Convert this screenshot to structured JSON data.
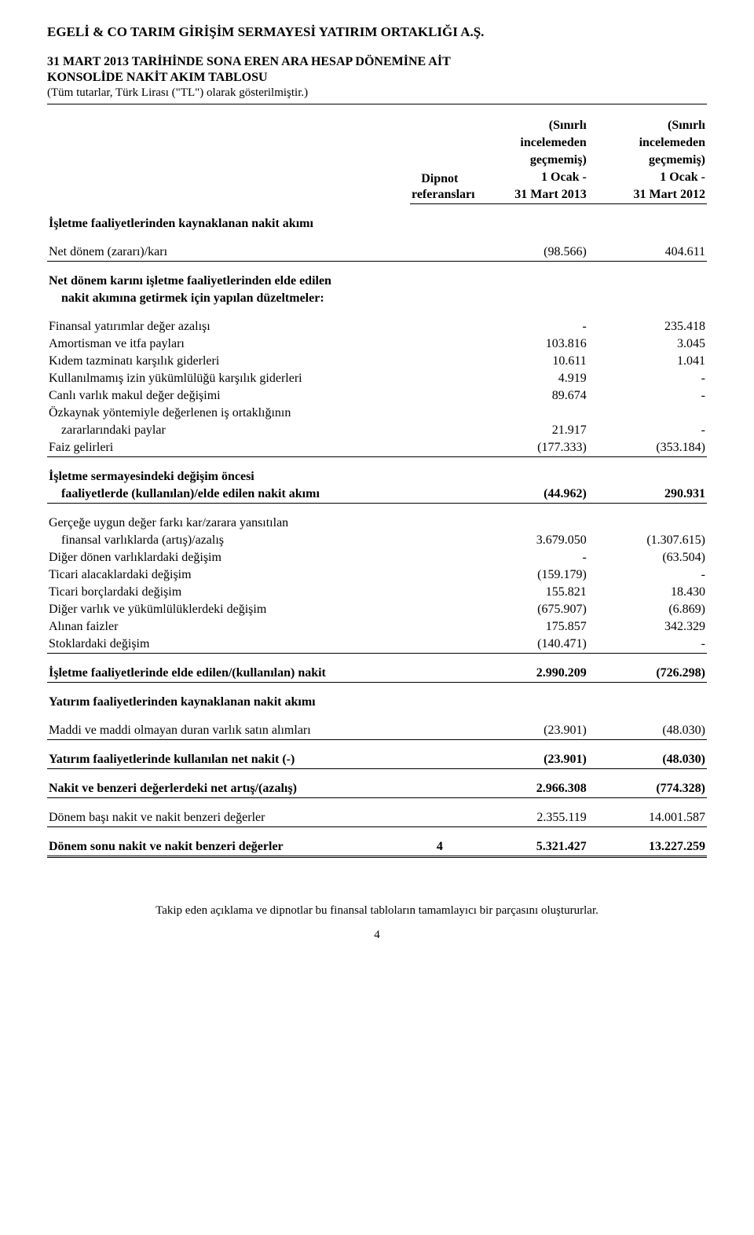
{
  "header": {
    "company": "EGELİ & CO TARIM GİRİŞİM SERMAYESİ YATIRIM ORTAKLIĞI A.Ş.",
    "title_line1": "31 MART 2013 TARİHİNDE SONA EREN ARA HESAP DÖNEMİNE AİT",
    "title_line2": "KONSOLİDE NAKİT AKIM TABLOSU",
    "note": "(Tüm tutarlar, Türk Lirası (\"TL\") olarak gösterilmiştir.)"
  },
  "columns": {
    "ref_label1": "Dipnot",
    "ref_label2": "referansları",
    "col1_sub1": "(Sınırlı",
    "col1_sub2": "incelemeden",
    "col1_sub3": "geçmemiş)",
    "col1_date1": "1 Ocak -",
    "col1_date2": "31 Mart 2013",
    "col2_sub1": "(Sınırlı",
    "col2_sub2": "incelemeden",
    "col2_sub3": "geçmemiş)",
    "col2_date1": "1 Ocak -",
    "col2_date2": "31 Mart 2012"
  },
  "rows": {
    "sec1": "İşletme faaliyetlerinden kaynaklanan nakit akımı",
    "r1": {
      "label": "Net dönem (zararı)/karı",
      "c1": "(98.566)",
      "c2": "404.611"
    },
    "sec2a": "Net dönem karını işletme faaliyetlerinden elde edilen",
    "sec2b": "nakit akımına getirmek için yapılan düzeltmeler:",
    "r2": {
      "label": "Finansal yatırımlar değer azalışı",
      "c1": "-",
      "c2": "235.418"
    },
    "r3": {
      "label": "Amortisman ve itfa payları",
      "c1": "103.816",
      "c2": "3.045"
    },
    "r4": {
      "label": "Kıdem tazminatı karşılık giderleri",
      "c1": "10.611",
      "c2": "1.041"
    },
    "r5": {
      "label": "Kullanılmamış izin yükümlülüğü karşılık giderleri",
      "c1": "4.919",
      "c2": "-"
    },
    "r6": {
      "label": "Canlı varlık makul değer değişimi",
      "c1": "89.674",
      "c2": "-"
    },
    "r7a": {
      "label": "Özkaynak yöntemiyle değerlenen iş ortaklığının"
    },
    "r7b": {
      "label": "zararlarındaki paylar",
      "c1": "21.917",
      "c2": "-"
    },
    "r8": {
      "label": "Faiz gelirleri",
      "c1": "(177.333)",
      "c2": "(353.184)"
    },
    "sec3a": "İşletme sermayesindeki değişim öncesi",
    "sec3b": {
      "label": "faaliyetlerde (kullanılan)/elde edilen nakit akımı",
      "c1": "(44.962)",
      "c2": "290.931"
    },
    "r9a": {
      "label": "Gerçeğe uygun değer farkı kar/zarara yansıtılan"
    },
    "r9b": {
      "label": "finansal varlıklarda (artış)/azalış",
      "c1": "3.679.050",
      "c2": "(1.307.615)"
    },
    "r10": {
      "label": "Diğer dönen varlıklardaki değişim",
      "c1": "-",
      "c2": "(63.504)"
    },
    "r11": {
      "label": "Ticari alacaklardaki değişim",
      "c1": "(159.179)",
      "c2": "-"
    },
    "r12": {
      "label": "Ticari borçlardaki değişim",
      "c1": "155.821",
      "c2": "18.430"
    },
    "r13": {
      "label": "Diğer varlık ve yükümlülüklerdeki değişim",
      "c1": "(675.907)",
      "c2": "(6.869)"
    },
    "r14": {
      "label": "Alınan faizler",
      "c1": "175.857",
      "c2": "342.329"
    },
    "r15": {
      "label": "Stoklardaki değişim",
      "c1": "(140.471)",
      "c2": "-"
    },
    "sec4": {
      "label": "İşletme faaliyetlerinde elde edilen/(kullanılan) nakit",
      "c1": "2.990.209",
      "c2": "(726.298)"
    },
    "sec5": "Yatırım faaliyetlerinden kaynaklanan nakit akımı",
    "r16": {
      "label": "Maddi ve maddi olmayan duran varlık satın alımları",
      "c1": "(23.901)",
      "c2": "(48.030)"
    },
    "sec6": {
      "label": "Yatırım faaliyetlerinde kullanılan net nakit (-)",
      "c1": "(23.901)",
      "c2": "(48.030)"
    },
    "sec7": {
      "label": "Nakit ve benzeri değerlerdeki net artış/(azalış)",
      "c1": "2.966.308",
      "c2": "(774.328)"
    },
    "r17": {
      "label": "Dönem başı nakit ve nakit benzeri değerler",
      "c1": "2.355.119",
      "c2": "14.001.587"
    },
    "sec8": {
      "label": "Dönem sonu nakit ve nakit benzeri değerler",
      "ref": "4",
      "c1": "5.321.427",
      "c2": "13.227.259"
    }
  },
  "footer": {
    "note": "Takip eden açıklama ve dipnotlar bu finansal tabloların tamamlayıcı bir parçasını oluştururlar.",
    "page": "4"
  }
}
